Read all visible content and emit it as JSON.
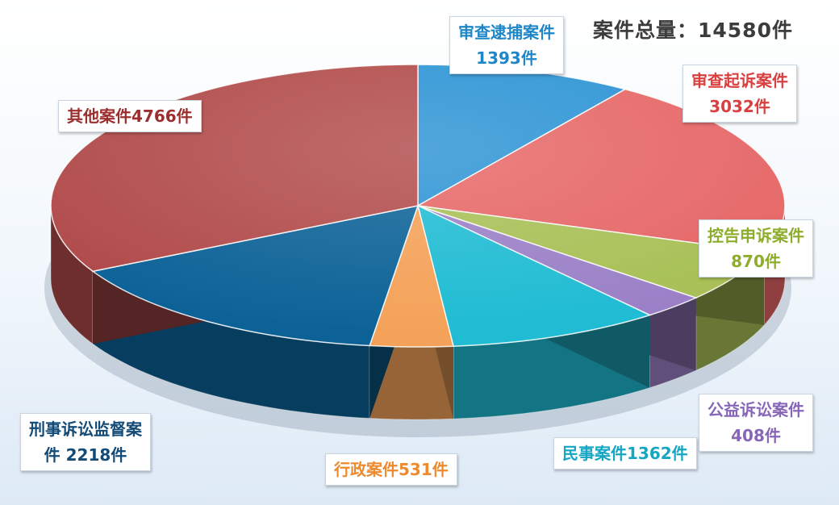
{
  "chart_data": {
    "type": "pie",
    "title": "案件总量：14580件",
    "slices": [
      {
        "name": "审查逮捕案件",
        "value": 1393,
        "label_lines": [
          "审查逮捕案件",
          "1393件"
        ],
        "color": "#2b93d4",
        "label_color": "#1f87c7"
      },
      {
        "name": "审查起诉案件",
        "value": 3032,
        "label_lines": [
          "审查起诉案件",
          "3032件"
        ],
        "color": "#e66666",
        "label_color": "#d94040"
      },
      {
        "name": "控告申诉案件",
        "value": 870,
        "label_lines": [
          "控告申诉案件",
          "870件"
        ],
        "color": "#a8c056",
        "label_color": "#8ead2d"
      },
      {
        "name": "公益诉讼案件",
        "value": 408,
        "label_lines": [
          "公益诉讼案件",
          "408件"
        ],
        "color": "#9b80c7",
        "label_color": "#8766b8"
      },
      {
        "name": "民事案件",
        "value": 1362,
        "label_lines": [
          "民事案件1362件"
        ],
        "color": "#1fbcd3",
        "label_color": "#14a6c2"
      },
      {
        "name": "行政案件",
        "value": 531,
        "label_lines": [
          "行政案件531件"
        ],
        "color": "#f4a259",
        "label_color": "#ee8a2e"
      },
      {
        "name": "刑事诉讼监督案件",
        "value": 2218,
        "label_lines": [
          "刑事诉讼监督案",
          "件 2218件"
        ],
        "color": "#0c6297",
        "label_color": "#124a78"
      },
      {
        "name": "其他案件",
        "value": 4766,
        "label_lines": [
          "其他案件4766件"
        ],
        "color": "#b14a4a",
        "label_color": "#9c2e2e"
      }
    ]
  }
}
